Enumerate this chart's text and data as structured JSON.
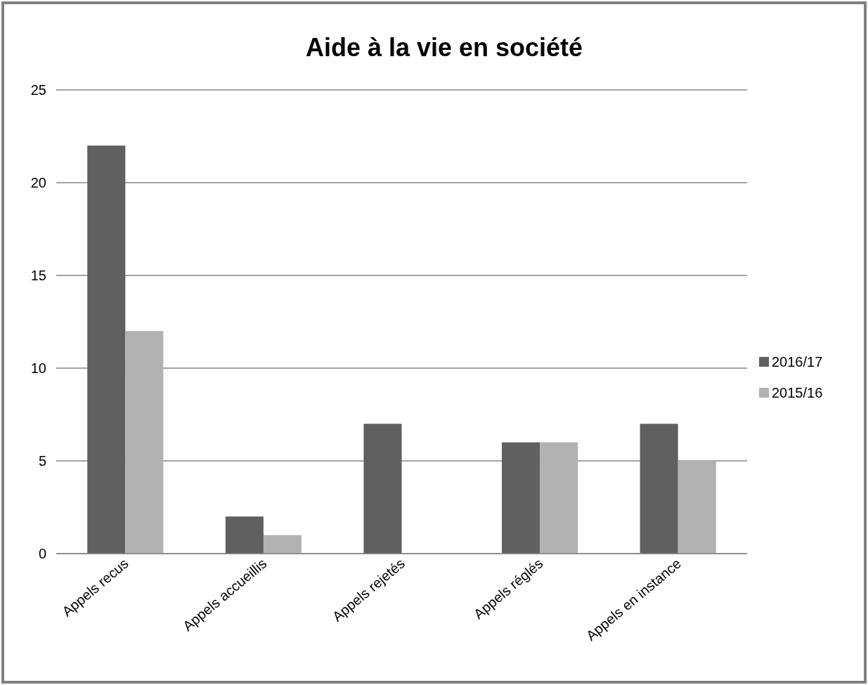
{
  "chart_data": {
    "type": "bar",
    "title": "Aide à la vie en société",
    "categories": [
      "Appels recus",
      "Appels accueillis",
      "Appels rejetés",
      "Appels réglés",
      "Appels en instance"
    ],
    "series": [
      {
        "name": "2016/17",
        "color": "#606060",
        "values": [
          22,
          2,
          7,
          6,
          7
        ]
      },
      {
        "name": "2015/16",
        "color": "#b2b2b2",
        "values": [
          12,
          1,
          0,
          6,
          5
        ]
      }
    ],
    "ylim": [
      0,
      25
    ],
    "yticks": [
      0,
      5,
      10,
      15,
      20,
      25
    ],
    "grid": "y",
    "legend": "right"
  }
}
